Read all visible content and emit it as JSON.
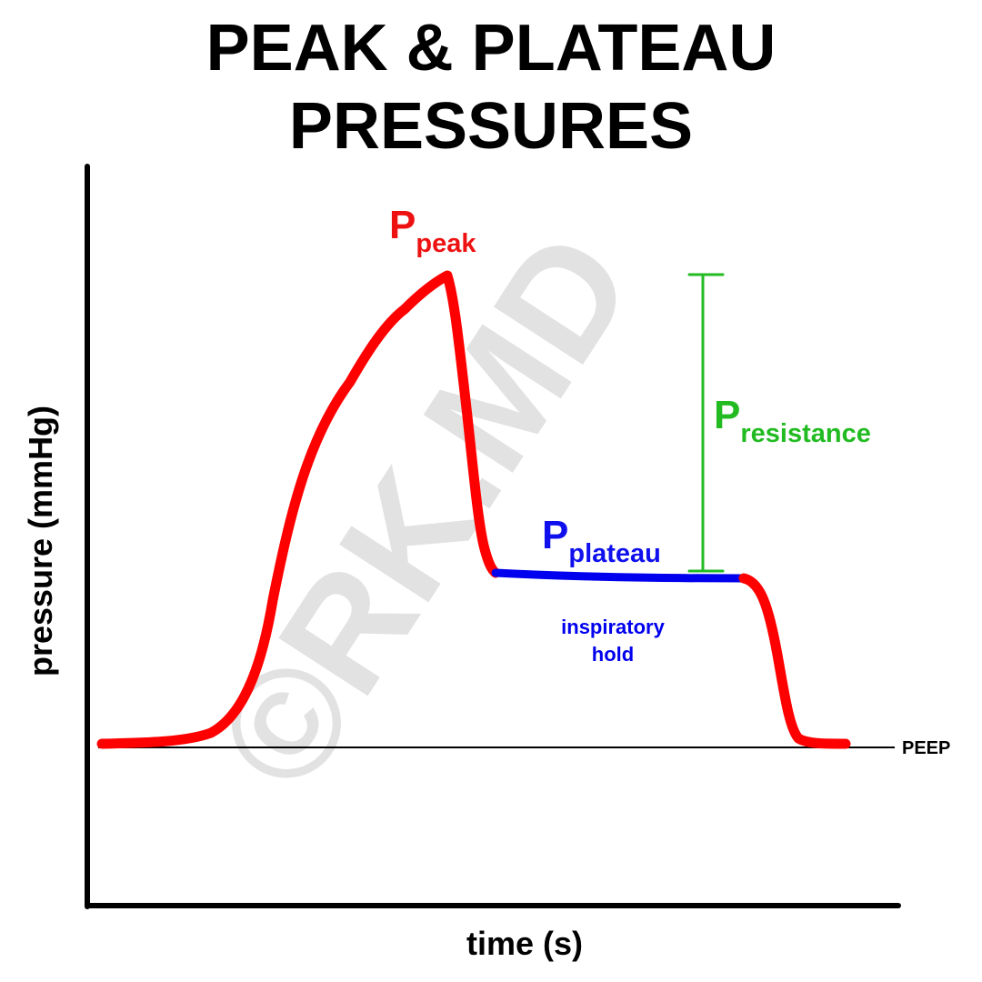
{
  "title": {
    "line1": "PEAK & PLATEAU",
    "line2": "PRESSURES"
  },
  "axes": {
    "ylabel": "pressure (mmHg)",
    "xlabel": "time (s)",
    "baseline_label": "PEEP"
  },
  "annotations": {
    "peak": {
      "main": "P",
      "sub": "peak",
      "color": "#ee1111"
    },
    "plateau": {
      "main": "P",
      "sub": "plateau",
      "color": "#1010ee"
    },
    "resistance": {
      "main": "P",
      "sub": "resistance",
      "color": "#22bb22"
    },
    "hold_line1": "inspiratory",
    "hold_line2": "hold"
  },
  "watermark": "©RK.MD",
  "colors": {
    "waveform": "#ff0000",
    "plateau": "#0000ee",
    "resistance_bracket": "#22bb22",
    "axes": "#000000"
  }
}
